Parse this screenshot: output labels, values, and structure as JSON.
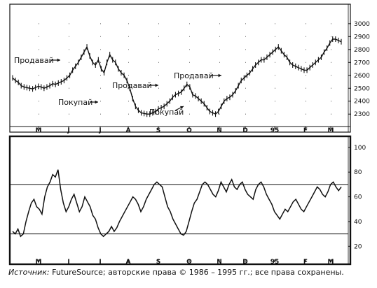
{
  "caption": {
    "prefix": "Источник:",
    "text": " FutureSource; авторские права © 1986 – 1995 гг.; все права сохранены."
  },
  "chart_data": [
    {
      "type": "line",
      "title": "",
      "months": [
        "M",
        "J",
        "J",
        "A",
        "S",
        "O",
        "N",
        "D",
        "95",
        "F",
        "M"
      ],
      "yticks": [
        2300,
        2400,
        2500,
        2600,
        2700,
        2800,
        2900,
        3000
      ],
      "ylim": [
        2200,
        3050
      ],
      "grid": "dotted",
      "series": [
        {
          "values": [
            2580,
            2560,
            2545,
            2520,
            2510,
            2505,
            2500,
            2495,
            2505,
            2515,
            2510,
            2500,
            2510,
            2520,
            2535,
            2530,
            2540,
            2550,
            2560,
            2580,
            2600,
            2640,
            2670,
            2700,
            2740,
            2780,
            2820,
            2750,
            2700,
            2680,
            2720,
            2650,
            2620,
            2700,
            2760,
            2720,
            2700,
            2650,
            2620,
            2600,
            2560,
            2500,
            2420,
            2360,
            2330,
            2310,
            2305,
            2300,
            2300,
            2310,
            2320,
            2340,
            2350,
            2360,
            2380,
            2400,
            2430,
            2450,
            2460,
            2470,
            2500,
            2530,
            2510,
            2450,
            2440,
            2420,
            2400,
            2380,
            2350,
            2320,
            2310,
            2300,
            2320,
            2360,
            2400,
            2420,
            2430,
            2450,
            2480,
            2520,
            2560,
            2580,
            2600,
            2620,
            2650,
            2680,
            2700,
            2720,
            2720,
            2740,
            2760,
            2780,
            2800,
            2820,
            2790,
            2760,
            2740,
            2700,
            2680,
            2670,
            2660,
            2650,
            2640,
            2640,
            2660,
            2680,
            2700,
            2720,
            2740,
            2780,
            2810,
            2850,
            2880,
            2880,
            2870,
            2860
          ],
          "annotations": [
            {
              "label": "Продавай",
              "role": "sell"
            },
            {
              "label": "Покупай",
              "role": "buy"
            },
            {
              "label": "Продавай",
              "role": "sell"
            },
            {
              "label": "Покупай",
              "role": "buy"
            },
            {
              "label": "Продавай",
              "role": "sell"
            }
          ]
        }
      ]
    },
    {
      "type": "line",
      "title": "",
      "months": [
        "M",
        "J",
        "J",
        "A",
        "S",
        "O",
        "N",
        "D",
        "95",
        "F",
        "M"
      ],
      "yticks": [
        20,
        40,
        60,
        80,
        100
      ],
      "ylim": [
        10,
        105
      ],
      "reference_lines": [
        70,
        30
      ],
      "series": [
        {
          "values": [
            32,
            30,
            34,
            28,
            30,
            40,
            48,
            55,
            58,
            52,
            50,
            46,
            60,
            68,
            72,
            78,
            76,
            82,
            66,
            55,
            48,
            52,
            58,
            62,
            55,
            48,
            52,
            60,
            56,
            52,
            45,
            42,
            35,
            30,
            28,
            30,
            32,
            36,
            32,
            35,
            40,
            44,
            48,
            52,
            56,
            60,
            58,
            54,
            48,
            52,
            58,
            62,
            66,
            70,
            72,
            70,
            68,
            60,
            52,
            48,
            42,
            38,
            34,
            30,
            29,
            32,
            40,
            48,
            55,
            58,
            64,
            70,
            72,
            70,
            66,
            62,
            60,
            65,
            72,
            68,
            64,
            70,
            74,
            68,
            66,
            70,
            72,
            66,
            62,
            60,
            58,
            66,
            70,
            72,
            68,
            62,
            58,
            54,
            48,
            45,
            42,
            46,
            50,
            48,
            52,
            56,
            58,
            54,
            50,
            48,
            52,
            56,
            60,
            64,
            68,
            66,
            62,
            60,
            64,
            70,
            72,
            68,
            65,
            68
          ]
        }
      ]
    }
  ]
}
